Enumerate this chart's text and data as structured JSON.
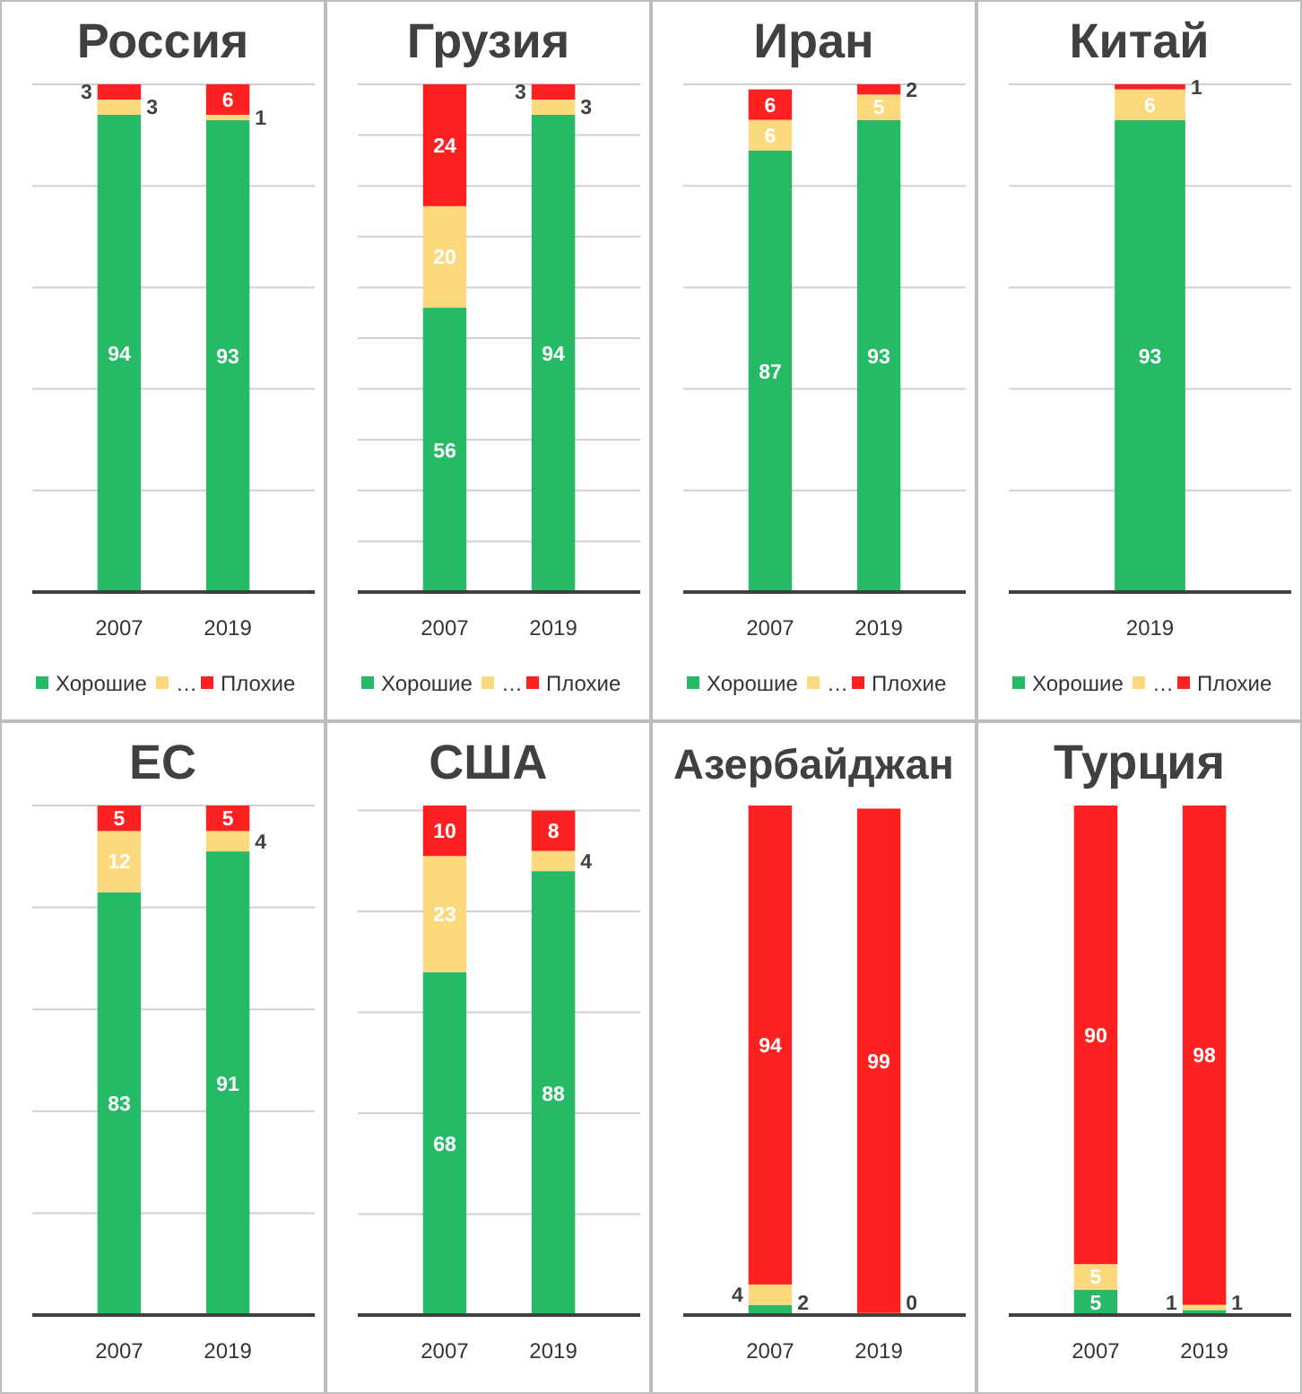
{
  "chart_data": [
    {
      "type": "bar",
      "stacked": true,
      "title": "Россия",
      "categories": [
        "2007",
        "2019"
      ],
      "series": [
        {
          "name": "Хорошие",
          "color": "#27ba66",
          "values": [
            94,
            93
          ]
        },
        {
          "name": "…",
          "color": "#fbd97c",
          "values": [
            3,
            1
          ]
        },
        {
          "name": "Плохие",
          "color": "#ff2121",
          "values": [
            3,
            6
          ]
        }
      ],
      "ylim": [
        0,
        100
      ],
      "yticks": [
        {
          "value": 0,
          "label": null
        },
        {
          "value": 20,
          "label": null
        },
        {
          "value": 40,
          "label": null
        },
        {
          "value": 60,
          "label": null
        },
        {
          "value": 80,
          "label": null
        },
        {
          "value": 100,
          "label": null
        }
      ],
      "grid": "y",
      "tick_labels": "x",
      "legend": "bottom",
      "data_labels": true
    },
    {
      "type": "bar",
      "stacked": true,
      "title": "Грузия",
      "categories": [
        "2007",
        "2019"
      ],
      "series": [
        {
          "name": "Хорошие",
          "color": "#27ba66",
          "values": [
            56,
            94
          ]
        },
        {
          "name": "…",
          "color": "#fbd97c",
          "values": [
            20,
            3
          ]
        },
        {
          "name": "Плохие",
          "color": "#ff2121",
          "values": [
            24,
            3
          ]
        }
      ],
      "ylim": [
        0,
        100
      ],
      "yticks": [
        {
          "value": 0,
          "label": null
        },
        {
          "value": 10,
          "label": null
        },
        {
          "value": 20,
          "label": null
        },
        {
          "value": 30,
          "label": null
        },
        {
          "value": 40,
          "label": null
        },
        {
          "value": 50,
          "label": null
        },
        {
          "value": 60,
          "label": null
        },
        {
          "value": 70,
          "label": null
        },
        {
          "value": 80,
          "label": null
        },
        {
          "value": 90,
          "label": null
        },
        {
          "value": 100,
          "label": null
        }
      ],
      "grid": "y",
      "tick_labels": "x",
      "legend": "bottom",
      "data_labels": true
    },
    {
      "type": "bar",
      "stacked": true,
      "title": "Иран",
      "categories": [
        "2007",
        "2019"
      ],
      "series": [
        {
          "name": "Хорошие",
          "color": "#27ba66",
          "values": [
            87,
            93
          ]
        },
        {
          "name": "…",
          "color": "#fbd97c",
          "values": [
            6,
            5
          ]
        },
        {
          "name": "Плохие",
          "color": "#ff2121",
          "values": [
            6,
            2
          ]
        }
      ],
      "ylim": [
        0,
        100
      ],
      "yticks": [
        {
          "value": 0,
          "label": null
        },
        {
          "value": 20,
          "label": null
        },
        {
          "value": 40,
          "label": null
        },
        {
          "value": 60,
          "label": null
        },
        {
          "value": 80,
          "label": null
        },
        {
          "value": 100,
          "label": null
        }
      ],
      "grid": "y",
      "tick_labels": "x",
      "legend": "bottom",
      "data_labels": true
    },
    {
      "type": "bar",
      "stacked": true,
      "title": "Китай",
      "categories": [
        "2019"
      ],
      "series": [
        {
          "name": "Хорошие",
          "color": "#27ba66",
          "values": [
            93
          ]
        },
        {
          "name": "…",
          "color": "#fbd97c",
          "values": [
            6
          ]
        },
        {
          "name": "Плохие",
          "color": "#ff2121",
          "values": [
            1
          ]
        }
      ],
      "ylim": [
        0,
        100
      ],
      "yticks": [
        {
          "value": 0,
          "label": null
        },
        {
          "value": 20,
          "label": null
        },
        {
          "value": 40,
          "label": null
        },
        {
          "value": 60,
          "label": null
        },
        {
          "value": 80,
          "label": null
        },
        {
          "value": 100,
          "label": null
        }
      ],
      "grid": "y",
      "tick_labels": "x",
      "legend": "bottom",
      "data_labels": true
    },
    {
      "type": "bar",
      "stacked": true,
      "title": "ЕС",
      "categories": [
        "2007",
        "2019"
      ],
      "series": [
        {
          "color": "#27ba66",
          "values": [
            83,
            91
          ]
        },
        {
          "color": "#fbd97c",
          "values": [
            12,
            4
          ]
        },
        {
          "color": "#ff2121",
          "values": [
            5,
            5
          ]
        }
      ],
      "ylim": [
        0,
        100
      ],
      "yticks": [
        {
          "value": 0,
          "label": null
        },
        {
          "value": 20,
          "label": null
        },
        {
          "value": 40,
          "label": null
        },
        {
          "value": 60,
          "label": null
        },
        {
          "value": 80,
          "label": null
        },
        {
          "value": 100,
          "label": null
        }
      ],
      "grid": "y",
      "tick_labels": "x",
      "data_labels": true
    },
    {
      "type": "bar",
      "stacked": true,
      "title": "США",
      "categories": [
        "2007",
        "2019"
      ],
      "series": [
        {
          "color": "#27ba66",
          "values": [
            68,
            88
          ]
        },
        {
          "color": "#fbd97c",
          "values": [
            23,
            4
          ]
        },
        {
          "color": "#ff2121",
          "values": [
            10,
            8
          ]
        }
      ],
      "ylim": [
        0,
        101
      ],
      "yticks": [
        {
          "value": 0,
          "label": null
        },
        {
          "value": 20,
          "label": null
        },
        {
          "value": 40,
          "label": null
        },
        {
          "value": 60,
          "label": null
        },
        {
          "value": 80,
          "label": null
        },
        {
          "value": 100,
          "label": null
        }
      ],
      "grid": "y",
      "tick_labels": "x",
      "data_labels": true
    },
    {
      "type": "bar",
      "stacked": true,
      "title": "Азербайджан",
      "categories": [
        "2007",
        "2019"
      ],
      "series": [
        {
          "color": "#27ba66",
          "values": [
            2,
            null
          ],
          "value_labels": [
            "2",
            null
          ]
        },
        {
          "color": "#fbd97c",
          "values": [
            4,
            0.4
          ],
          "value_labels": [
            "4",
            "0"
          ]
        },
        {
          "color": "#ff2121",
          "values": [
            94,
            99
          ],
          "value_labels": [
            "94",
            "99"
          ]
        }
      ],
      "ylim": [
        0,
        100
      ],
      "tick_labels": "x"
    },
    {
      "type": "bar",
      "stacked": true,
      "title": "Турция",
      "categories": [
        "2007",
        "2019"
      ],
      "series": [
        {
          "color": "#27ba66",
          "values": [
            5,
            1
          ]
        },
        {
          "color": "#fbd97c",
          "values": [
            5,
            1
          ]
        },
        {
          "color": "#ff2121",
          "values": [
            90,
            98
          ]
        }
      ],
      "ylim": [
        0,
        100
      ],
      "tick_labels": "x",
      "data_labels": true
    }
  ]
}
